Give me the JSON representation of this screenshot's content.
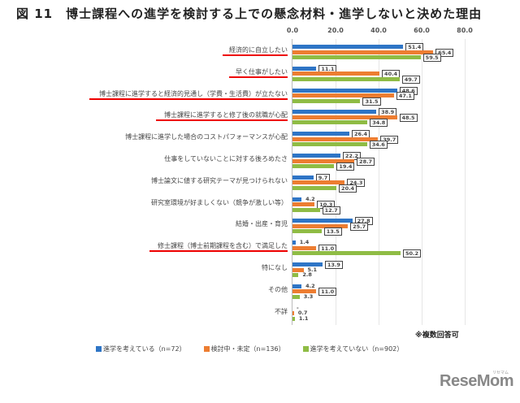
{
  "title": "図 11　博士課程への進学を検討する上での懸念材料・進学しないと決めた理由",
  "chart_data": {
    "type": "bar",
    "orientation": "horizontal",
    "title": "図 11　博士課程への進学を検討する上での懸念材料・進学しないと決めた理由",
    "xlabel": "",
    "ylabel": "",
    "xlim": [
      0,
      80
    ],
    "x_ticks": [
      "0.0",
      "20.0",
      "40.0",
      "60.0",
      "80.0"
    ],
    "grid": true,
    "legend_position": "bottom",
    "categories": [
      "経済的に自立したい",
      "早く仕事がしたい",
      "博士課程に進学すると経済的見通し（学費・生活費）が立たない",
      "博士課程に進学すると修了後の就職が心配",
      "博士課程に進学した場合のコストパフォーマンスが心配",
      "仕事をしていないことに対する後ろめたさ",
      "博士論文に値する研究テーマが見つけられない",
      "研究室環境が好ましくない（競争が激しい等）",
      "結婚・出産・育児",
      "修士課程（博士前期課程を含む）で満足した",
      "特になし",
      "その他",
      "不詳"
    ],
    "highlighted_categories": [
      0,
      1,
      2,
      3,
      9
    ],
    "series": [
      {
        "name": "進学を考えている（n=72）",
        "color": "#2e75c6",
        "values": [
          51.4,
          11.1,
          48.6,
          38.9,
          26.4,
          22.2,
          9.7,
          4.2,
          27.8,
          1.4,
          13.9,
          4.2,
          0.0
        ]
      },
      {
        "name": "検討中・未定（n=136）",
        "color": "#ed7d31",
        "values": [
          65.4,
          40.4,
          47.1,
          48.5,
          39.7,
          28.7,
          24.3,
          10.3,
          25.7,
          11.0,
          5.1,
          11.0,
          0.7
        ]
      },
      {
        "name": "進学を考えていない（n=902）",
        "color": "#8fbc45",
        "values": [
          59.5,
          49.7,
          31.5,
          34.8,
          34.6,
          19.4,
          20.4,
          12.7,
          13.5,
          50.2,
          2.8,
          3.3,
          1.1
        ]
      }
    ],
    "annotations": [
      "※複数回答可"
    ]
  },
  "note": "※複数回答可",
  "legend": [
    {
      "label": "進学を考えている（n=72）",
      "color": "#2e75c6"
    },
    {
      "label": "検討中・未定（n=136）",
      "color": "#ed7d31"
    },
    {
      "label": "進学を考えていない（n=902）",
      "color": "#8fbc45"
    }
  ],
  "logo": {
    "text": "ReseMom",
    "sub": "リセマム"
  }
}
